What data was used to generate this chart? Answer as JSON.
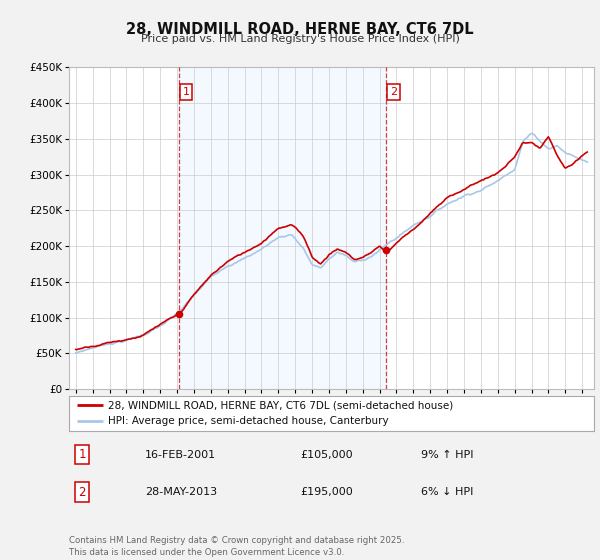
{
  "title": "28, WINDMILL ROAD, HERNE BAY, CT6 7DL",
  "subtitle": "Price paid vs. HM Land Registry's House Price Index (HPI)",
  "property_label": "28, WINDMILL ROAD, HERNE BAY, CT6 7DL (semi-detached house)",
  "hpi_label": "HPI: Average price, semi-detached house, Canterbury",
  "property_color": "#cc0000",
  "hpi_color": "#a8c8e8",
  "sale1_date": 2001.12,
  "sale1_price": 105000,
  "sale2_date": 2013.4,
  "sale2_price": 195000,
  "table_rows": [
    {
      "num": "1",
      "date": "16-FEB-2001",
      "price": "£105,000",
      "note": "9% ↑ HPI"
    },
    {
      "num": "2",
      "date": "28-MAY-2013",
      "price": "£195,000",
      "note": "6% ↓ HPI"
    }
  ],
  "footer": "Contains HM Land Registry data © Crown copyright and database right 2025.\nThis data is licensed under the Open Government Licence v3.0.",
  "ylim": [
    0,
    450000
  ],
  "yticks": [
    0,
    50000,
    100000,
    150000,
    200000,
    250000,
    300000,
    350000,
    400000,
    450000
  ],
  "ytick_labels": [
    "£0",
    "£50K",
    "£100K",
    "£150K",
    "£200K",
    "£250K",
    "£300K",
    "£350K",
    "£400K",
    "£450K"
  ],
  "bg_color": "#f2f2f2",
  "plot_bg": "#ffffff",
  "shade_color": "#ddeeff"
}
